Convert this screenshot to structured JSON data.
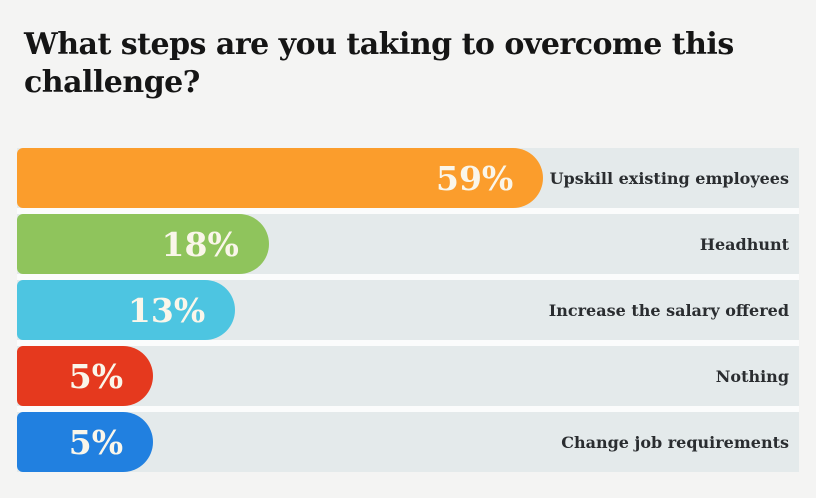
{
  "page": {
    "background": "#F4F4F3"
  },
  "title": {
    "text": "What steps are you taking to overcome this challenge?",
    "line1": "What steps are you taking to overcome this",
    "line2": "challenge?"
  },
  "chart_data": {
    "type": "bar",
    "orientation": "horizontal",
    "title": "What steps are you taking to overcome this challenge?",
    "categories": [
      "Upskill existing employees",
      "Headhunt",
      "Increase the salary offered",
      "Nothing",
      "Change job requirements"
    ],
    "values": [
      59,
      18,
      13,
      5,
      5
    ],
    "unit": "%",
    "value_labels": [
      "59%",
      "18%",
      "13%",
      "5%",
      "5%"
    ],
    "bar_colors": [
      "#FB9D2C",
      "#8FC45C",
      "#4DC5E1",
      "#E5391E",
      "#2180E0"
    ],
    "xlim": [
      0,
      100
    ],
    "layout": {
      "legend": "none",
      "grid": "off",
      "value_label_position": "inside-right",
      "category_label_position": "right-of-track",
      "bar_width_fractions": [
        0.673,
        0.322,
        0.279,
        0.174,
        0.174
      ],
      "row_track_color": "#E4EAEB",
      "row_gap_color": "#FBFCFC",
      "value_text_color": "#FAF6EA",
      "category_text_color": "#2A2D30",
      "title_color": "#151515"
    }
  }
}
